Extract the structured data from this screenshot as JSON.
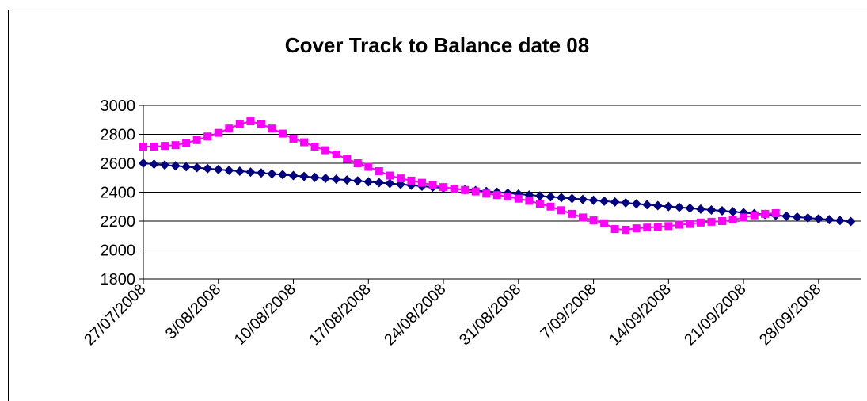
{
  "chart_data": {
    "type": "line",
    "title": "Cover Track  to Balance date 08",
    "x": [
      "2008-07-27",
      "2008-07-28",
      "2008-07-29",
      "2008-07-30",
      "2008-07-31",
      "2008-08-01",
      "2008-08-02",
      "2008-08-03",
      "2008-08-04",
      "2008-08-05",
      "2008-08-06",
      "2008-08-07",
      "2008-08-08",
      "2008-08-09",
      "2008-08-10",
      "2008-08-11",
      "2008-08-12",
      "2008-08-13",
      "2008-08-14",
      "2008-08-15",
      "2008-08-16",
      "2008-08-17",
      "2008-08-18",
      "2008-08-19",
      "2008-08-20",
      "2008-08-21",
      "2008-08-22",
      "2008-08-23",
      "2008-08-24",
      "2008-08-25",
      "2008-08-26",
      "2008-08-27",
      "2008-08-28",
      "2008-08-29",
      "2008-08-30",
      "2008-08-31",
      "2008-09-01",
      "2008-09-02",
      "2008-09-03",
      "2008-09-04",
      "2008-09-05",
      "2008-09-06",
      "2008-09-07",
      "2008-09-08",
      "2008-09-09",
      "2008-09-10",
      "2008-09-11",
      "2008-09-12",
      "2008-09-13",
      "2008-09-14",
      "2008-09-15",
      "2008-09-16",
      "2008-09-17",
      "2008-09-18",
      "2008-09-19",
      "2008-09-20",
      "2008-09-21",
      "2008-09-22",
      "2008-09-23",
      "2008-09-24",
      "2008-09-25",
      "2008-09-26",
      "2008-09-27",
      "2008-09-28",
      "2008-09-29",
      "2008-09-30",
      "2008-10-01"
    ],
    "series": [
      {
        "color": "#000080",
        "marker": "diamond",
        "values": [
          2600,
          2594,
          2588,
          2582,
          2576,
          2570,
          2563,
          2557,
          2551,
          2545,
          2539,
          2533,
          2527,
          2521,
          2515,
          2509,
          2502,
          2496,
          2490,
          2484,
          2478,
          2472,
          2466,
          2460,
          2454,
          2448,
          2441,
          2435,
          2429,
          2423,
          2417,
          2411,
          2405,
          2399,
          2393,
          2387,
          2380,
          2374,
          2368,
          2362,
          2356,
          2350,
          2344,
          2338,
          2332,
          2326,
          2319,
          2313,
          2307,
          2301,
          2295,
          2289,
          2283,
          2277,
          2271,
          2265,
          2258,
          2252,
          2246,
          2240,
          2234,
          2228,
          2222,
          2216,
          2210,
          2204,
          2197
        ]
      },
      {
        "color": "#ff00ff",
        "marker": "square",
        "values": [
          2715,
          2715,
          2720,
          2725,
          2740,
          2760,
          2785,
          2810,
          2840,
          2870,
          2890,
          2870,
          2840,
          2805,
          2770,
          2745,
          2715,
          2690,
          2660,
          2630,
          2600,
          2575,
          2545,
          2515,
          2495,
          2480,
          2465,
          2450,
          2435,
          2425,
          2415,
          2405,
          2390,
          2380,
          2370,
          2355,
          2340,
          2320,
          2300,
          2275,
          2250,
          2225,
          2205,
          2185,
          2145,
          2140,
          2150,
          2155,
          2160,
          2165,
          2175,
          2180,
          2190,
          2195,
          2200,
          2210,
          2225,
          2240,
          2250,
          2255,
          null,
          null,
          null,
          null,
          null,
          null,
          null
        ]
      }
    ],
    "xlim": [
      "2008-07-27",
      "2008-10-02"
    ],
    "xticks": [
      {
        "value": "2008-07-27",
        "label": "27/07/2008"
      },
      {
        "value": "2008-08-03",
        "label": "3/08/2008"
      },
      {
        "value": "2008-08-10",
        "label": "10/08/2008"
      },
      {
        "value": "2008-08-17",
        "label": "17/08/2008"
      },
      {
        "value": "2008-08-24",
        "label": "24/08/2008"
      },
      {
        "value": "2008-08-31",
        "label": "31/08/2008"
      },
      {
        "value": "2008-09-07",
        "label": "7/09/2008"
      },
      {
        "value": "2008-09-14",
        "label": "14/09/2008"
      },
      {
        "value": "2008-09-21",
        "label": "21/09/2008"
      },
      {
        "value": "2008-09-28",
        "label": "28/09/2008"
      }
    ],
    "ylim": [
      1800,
      3000
    ],
    "yticks": [
      1800,
      2000,
      2200,
      2400,
      2600,
      2800,
      3000
    ],
    "grid": true
  }
}
